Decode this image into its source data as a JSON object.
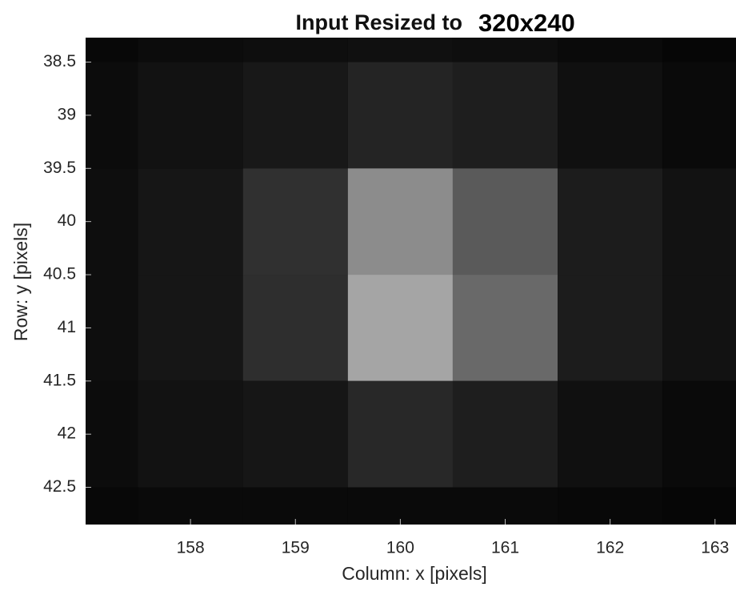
{
  "chart_data": {
    "type": "heatmap",
    "title": "Input Resized to",
    "title_highlight": "320x240",
    "xlabel": "Column: x [pixels]",
    "ylabel": "Row: y [pixels]",
    "x": [
      157,
      158,
      159,
      160,
      161,
      162,
      163
    ],
    "y": [
      38,
      39,
      40,
      41,
      42,
      43
    ],
    "values": [
      [
        8,
        12,
        14,
        16,
        14,
        10,
        6
      ],
      [
        12,
        18,
        24,
        36,
        30,
        16,
        10
      ],
      [
        14,
        22,
        48,
        140,
        90,
        28,
        18
      ],
      [
        14,
        22,
        46,
        165,
        105,
        28,
        18
      ],
      [
        12,
        18,
        22,
        40,
        30,
        16,
        10
      ],
      [
        8,
        10,
        10,
        10,
        10,
        8,
        6
      ]
    ],
    "colormap": "gray",
    "clim": [
      0,
      255
    ],
    "xlim": [
      157.0,
      163.2
    ],
    "ylim": [
      42.85,
      38.27
    ],
    "xticks": [
      158,
      159,
      160,
      161,
      162,
      163
    ],
    "yticks": [
      38.5,
      39,
      39.5,
      40,
      40.5,
      41,
      41.5,
      42,
      42.5
    ]
  }
}
